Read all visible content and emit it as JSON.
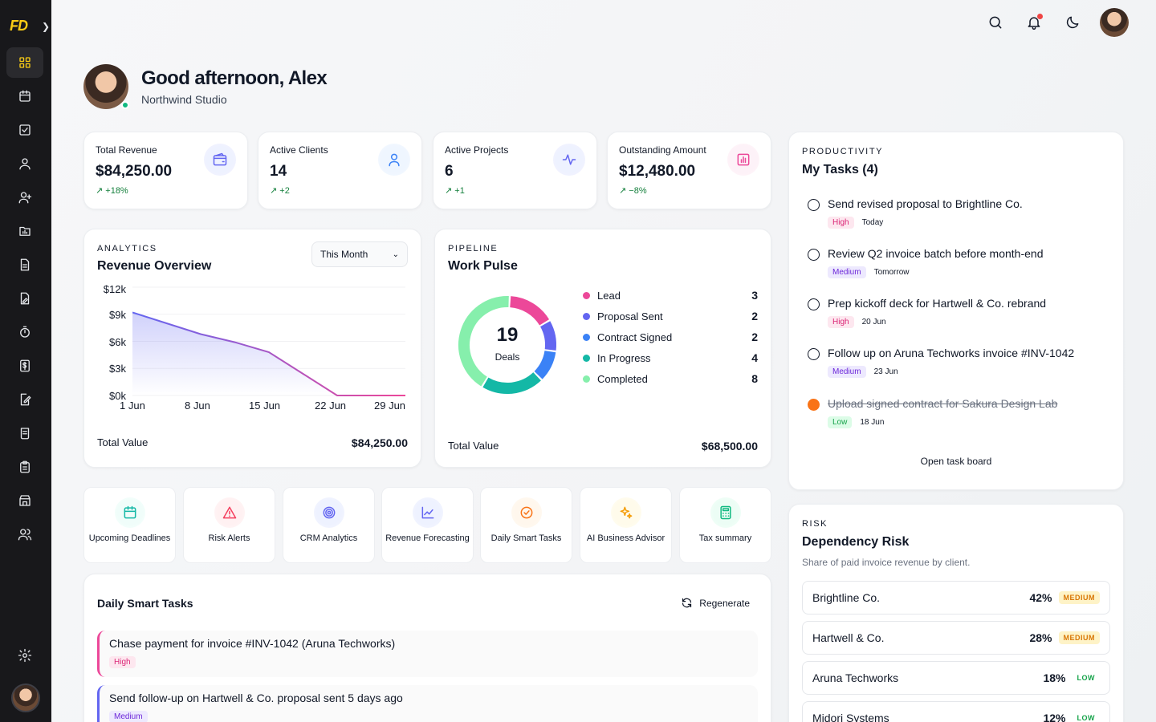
{
  "app": {
    "logo_text": "FD"
  },
  "greeting": {
    "title": "Good afternoon, Alex",
    "subtitle": "Northwind Studio"
  },
  "stats": [
    {
      "label": "Total Revenue",
      "value": "$84,250.00",
      "delta": "↗ +18%",
      "icon": "wallet-icon",
      "color": "#6366f1"
    },
    {
      "label": "Active Clients",
      "value": "14",
      "delta": "↗ +2",
      "icon": "user-icon",
      "color": "#3b82f6"
    },
    {
      "label": "Active Projects",
      "value": "6",
      "delta": "↗ +1",
      "icon": "activity-icon",
      "color": "#6366f1"
    },
    {
      "label": "Outstanding Amount",
      "value": "$12,480.00",
      "delta": "↗ −8%",
      "icon": "bar-chart-icon",
      "color": "#ec4899"
    }
  ],
  "revenue": {
    "eyebrow": "ANALYTICS",
    "title": "Revenue Overview",
    "period": "This Month",
    "total_label": "Total Value",
    "total_value": "$84,250.00"
  },
  "chart_data": {
    "type": "area",
    "title": "Revenue Overview",
    "x_ticks": [
      "1 Jun",
      "8 Jun",
      "15 Jun",
      "22 Jun",
      "29 Jun"
    ],
    "y_ticks": [
      "$12k",
      "$9k",
      "$6k",
      "$3k",
      "$0k"
    ],
    "ylim": [
      0,
      12000
    ],
    "x": [
      "1 Jun",
      "5 Jun",
      "8 Jun",
      "12 Jun",
      "15 Jun",
      "18 Jun",
      "22 Jun",
      "25 Jun",
      "29 Jun"
    ],
    "values": [
      9200,
      8000,
      6800,
      5900,
      4800,
      2400,
      0,
      0,
      0
    ],
    "grid": true,
    "gradient": [
      "#6366f1",
      "#ec4899"
    ]
  },
  "pipeline": {
    "eyebrow": "PIPELINE",
    "title": "Work Pulse",
    "center_value": "19",
    "center_label": "Deals",
    "total_label": "Total Value",
    "total_value": "$68,500.00",
    "segments": [
      {
        "name": "Lead",
        "count": "3",
        "value": 3,
        "color": "#ec4899"
      },
      {
        "name": "Proposal Sent",
        "count": "2",
        "value": 2,
        "color": "#6366f1"
      },
      {
        "name": "Contract Signed",
        "count": "2",
        "value": 2,
        "color": "#3b82f6"
      },
      {
        "name": "In Progress",
        "count": "4",
        "value": 4,
        "color": "#14b8a6"
      },
      {
        "name": "Completed",
        "count": "8",
        "value": 8,
        "color": "#86efac"
      }
    ]
  },
  "tasks": {
    "eyebrow": "PRODUCTIVITY",
    "title": "My Tasks (4)",
    "footer": "Open task board",
    "items": [
      {
        "title": "Send revised proposal to Brightline Co.",
        "priority": "High",
        "due": "Today",
        "done": false
      },
      {
        "title": "Review Q2 invoice batch before month-end",
        "priority": "Medium",
        "due": "Tomorrow",
        "done": false
      },
      {
        "title": "Prep kickoff deck for Hartwell & Co. rebrand",
        "priority": "High",
        "due": "20 Jun",
        "done": false
      },
      {
        "title": "Follow up on Aruna Techworks invoice #INV-1042",
        "priority": "Medium",
        "due": "23 Jun",
        "done": false
      },
      {
        "title": "Upload signed contract for Sakura Design Lab",
        "priority": "Low",
        "due": "18 Jun",
        "done": true
      }
    ]
  },
  "quick_actions": [
    {
      "label": "Upcoming Deadlines",
      "icon": "calendar-icon",
      "color": "#14b8a6"
    },
    {
      "label": "Risk Alerts",
      "icon": "warning-icon",
      "color": "#f43f5e"
    },
    {
      "label": "CRM Analytics",
      "icon": "target-icon",
      "color": "#6366f1"
    },
    {
      "label": "Revenue Forecasting",
      "icon": "line-chart-icon",
      "color": "#6366f1"
    },
    {
      "label": "Daily Smart Tasks",
      "icon": "check-circle-icon",
      "color": "#f97316"
    },
    {
      "label": "AI Business Advisor",
      "icon": "sparkles-icon",
      "color": "#f59e0b"
    },
    {
      "label": "Tax summary",
      "icon": "calculator-icon",
      "color": "#10b981"
    }
  ],
  "daily_smart": {
    "title": "Daily Smart Tasks",
    "regenerate": "Regenerate",
    "items": [
      {
        "text": "Chase payment for invoice #INV-1042 (Aruna Techworks)",
        "priority": "High"
      },
      {
        "text": "Send follow-up on Hartwell & Co. proposal sent 5 days ago",
        "priority": "Medium"
      }
    ]
  },
  "risk": {
    "eyebrow": "RISK",
    "title": "Dependency Risk",
    "subtitle": "Share of paid invoice revenue by client.",
    "rows": [
      {
        "client": "Brightline Co.",
        "pct": "42%",
        "level": "MEDIUM"
      },
      {
        "client": "Hartwell & Co.",
        "pct": "28%",
        "level": "MEDIUM"
      },
      {
        "client": "Aruna Techworks",
        "pct": "18%",
        "level": "LOW"
      },
      {
        "client": "Midori Systems",
        "pct": "12%",
        "level": "LOW"
      }
    ]
  },
  "sidebar_icons": [
    "dashboard-icon",
    "calendar-icon",
    "checkbox-icon",
    "user-icon",
    "user-plus-icon",
    "folder-chart-icon",
    "document-icon",
    "file-edit-icon",
    "timer-icon",
    "dollar-icon",
    "edit-doc-icon",
    "receipt-icon",
    "clipboard-icon",
    "store-icon",
    "users-icon",
    "settings-icon"
  ]
}
